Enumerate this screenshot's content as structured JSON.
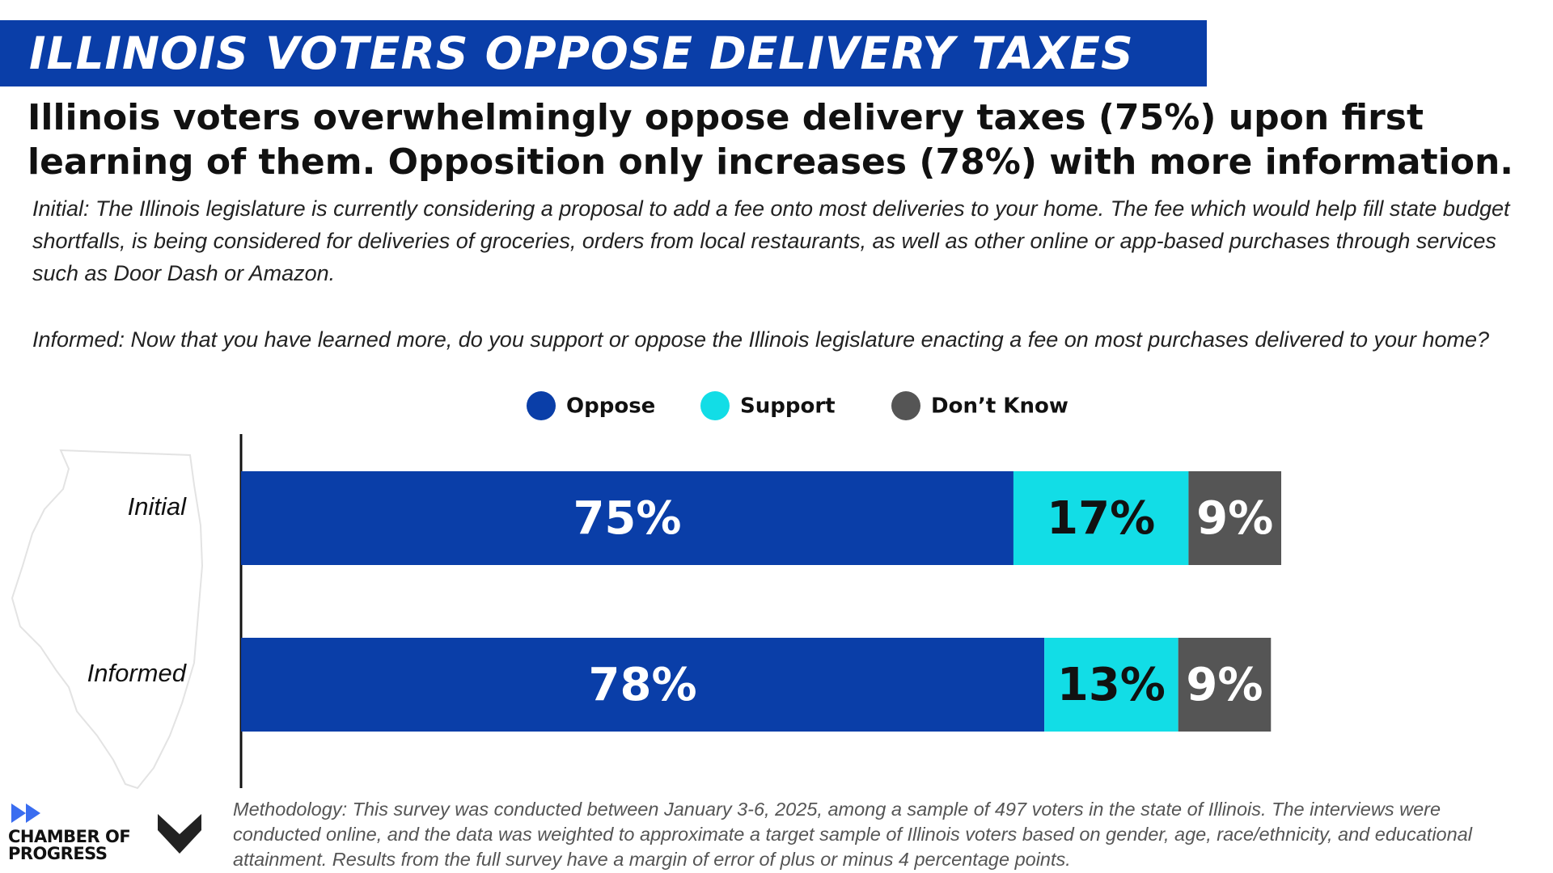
{
  "chart_data": {
    "type": "bar",
    "orientation": "horizontal",
    "stacked": true,
    "title": "ILLINOIS VOTERS OPPOSE DELIVERY TAXES",
    "subtitle": "Illinois voters overwhelmingly oppose delivery taxes (75%) upon first learning of them. Opposition only increases (78%) with more information.",
    "notes": [
      "Initial: The Illinois legislature is currently considering a proposal to add a fee onto most deliveries to your home. The fee which would help fill state budget shortfalls, is being considered for deliveries of groceries, orders from local restaurants, as well as other online or app-based purchases through services such as Door Dash or Amazon.",
      "Informed: Now that you have learned more, do you support or oppose the Illinois legislature enacting a fee on most purchases delivered to your home?"
    ],
    "source": "Methodology: This survey was conducted between January 3-6, 2025, among a sample of 497 voters in the state of Illinois. The interviews were conducted online, and the data was weighted to approximate a target sample of Illinois voters based on gender, age, race/ethnicity, and educational attainment. Results from the full survey have a margin of error of plus or minus 4 percentage points.",
    "logo": "CHAMBER OF PROGRESS",
    "categories": [
      "Initial",
      "Informed"
    ],
    "series": [
      {
        "name": "Oppose",
        "color": "#0a3ea8",
        "label_color": "#ffffff",
        "values": [
          75,
          78
        ],
        "value_labels": [
          "75%",
          "78%"
        ]
      },
      {
        "name": "Support",
        "color": "#12dde6",
        "label_color": "#111111",
        "values": [
          17,
          13
        ],
        "value_labels": [
          "17%",
          "13%"
        ]
      },
      {
        "name": "Don’t Know",
        "color": "#555555",
        "label_color": "#ffffff",
        "values": [
          9,
          9
        ],
        "value_labels": [
          "9%",
          "9%"
        ]
      }
    ],
    "xlim": [
      0,
      101
    ],
    "legend": "top"
  }
}
